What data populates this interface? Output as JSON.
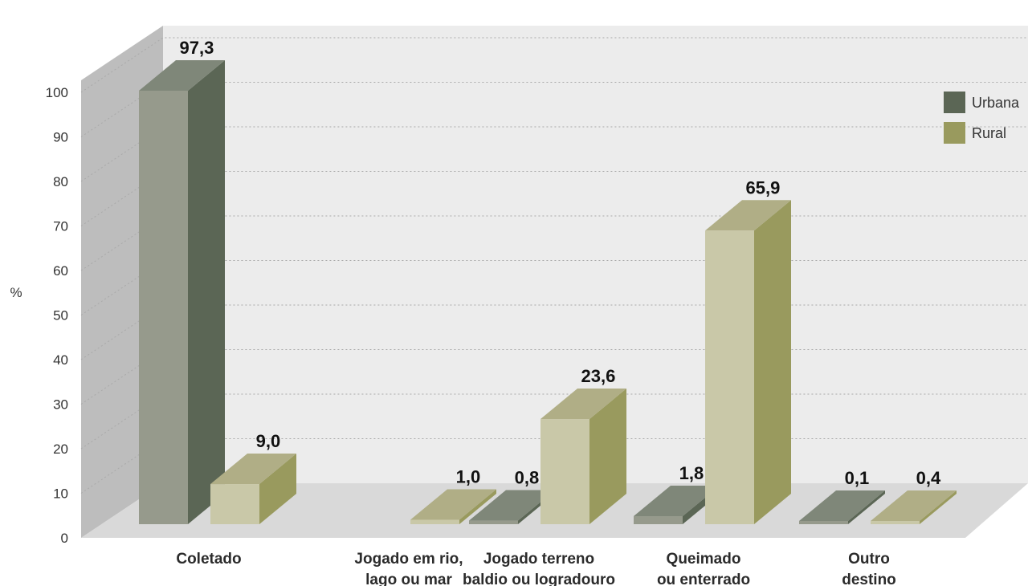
{
  "chart_data": {
    "type": "bar",
    "title": "",
    "xlabel": "",
    "ylabel": "%",
    "ylim": [
      0,
      100
    ],
    "yticks": [
      0,
      10,
      20,
      30,
      40,
      50,
      60,
      70,
      80,
      90,
      100
    ],
    "categories": [
      [
        "Coletado"
      ],
      [
        "Jogado em rio,",
        "lago ou mar"
      ],
      [
        "Jogado terreno",
        "baldio ou logradouro"
      ],
      [
        "Queimado",
        "ou enterrado"
      ],
      [
        "Outro",
        "destino"
      ]
    ],
    "series": [
      {
        "name": "Urbana",
        "values": [
          97.3,
          null,
          0.8,
          1.8,
          0.1
        ],
        "labels": [
          "97,3",
          "",
          "0,8",
          "1,8",
          "0,1"
        ],
        "colors": {
          "front": "#969a8c",
          "side": "#5b6655",
          "top": "#7f8779"
        }
      },
      {
        "name": "Rural",
        "values": [
          9.0,
          1.0,
          23.6,
          65.9,
          0.4
        ],
        "labels": [
          "9,0",
          "1,0",
          "23,6",
          "65,9",
          "0,4"
        ],
        "colors": {
          "front": "#c9c8a8",
          "side": "#999a5e",
          "top": "#b0ae86"
        }
      }
    ],
    "legend": {
      "position": "top-right",
      "items": [
        {
          "label": "Urbana",
          "color": "#5b6655"
        },
        {
          "label": "Rural",
          "color": "#999a5e"
        }
      ]
    },
    "grid": true,
    "style": "3d"
  }
}
